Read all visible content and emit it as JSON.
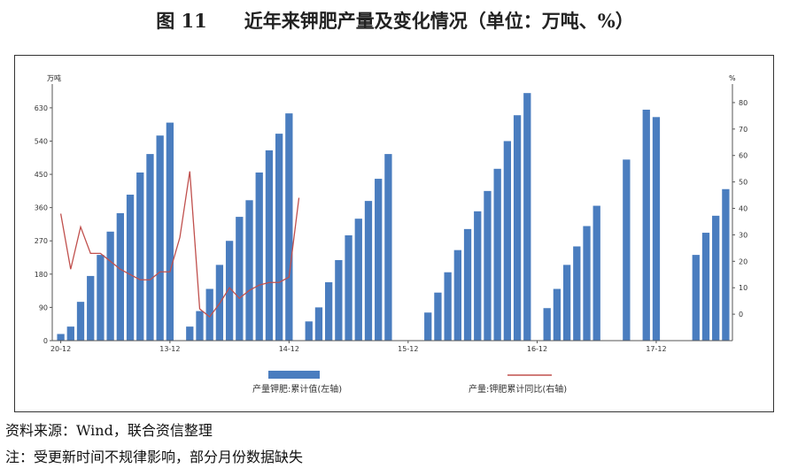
{
  "figure": {
    "title": "图 11　　近年来钾肥产量及变化情况（单位：万吨、%）",
    "source": "资料来源：Wind，联合资信整理",
    "note": "注：受更新时间不规律影响，部分月份数据缺失"
  },
  "chart_data": {
    "type": "bar",
    "left_unit": "万吨",
    "right_unit": "%",
    "left_ylim": [
      0,
      680
    ],
    "right_ylim": [
      -10,
      85
    ],
    "left_ticks": [
      "0",
      "90",
      "180",
      "270",
      "360",
      "450",
      "540",
      "630"
    ],
    "right_ticks": [
      "0",
      "10",
      "20",
      "30",
      "40",
      "50",
      "60",
      "70",
      "80"
    ],
    "x_tick_labels": [
      "20-12",
      "13-12",
      "14-12",
      "15-12",
      "16-12",
      "17-12"
    ],
    "series": [
      {
        "name": "产量钾肥:累计值(左轴)",
        "axis": "left",
        "color": "#4a7dbf",
        "values": [
          18,
          38,
          105,
          175,
          232,
          295,
          345,
          395,
          455,
          505,
          555,
          590,
          null,
          38,
          80,
          140,
          205,
          270,
          335,
          380,
          455,
          515,
          560,
          615,
          null,
          52,
          90,
          158,
          218,
          285,
          330,
          378,
          438,
          505,
          null,
          null,
          null,
          76,
          130,
          185,
          245,
          302,
          350,
          405,
          465,
          540,
          610,
          670,
          null,
          88,
          140,
          205,
          255,
          310,
          365,
          null,
          null,
          490,
          null,
          625,
          605,
          null,
          null,
          null,
          232,
          292,
          338,
          410
        ]
      },
      {
        "name": "产量:钾肥累计同比(右轴)",
        "axis": "right",
        "color": "#c0504d",
        "type": "line",
        "values": [
          38,
          17,
          33,
          23,
          23,
          20,
          17,
          15,
          13,
          13,
          16,
          16,
          29,
          54,
          2,
          -1,
          4,
          10,
          6,
          9,
          11,
          12,
          12,
          14,
          44
        ]
      }
    ]
  }
}
